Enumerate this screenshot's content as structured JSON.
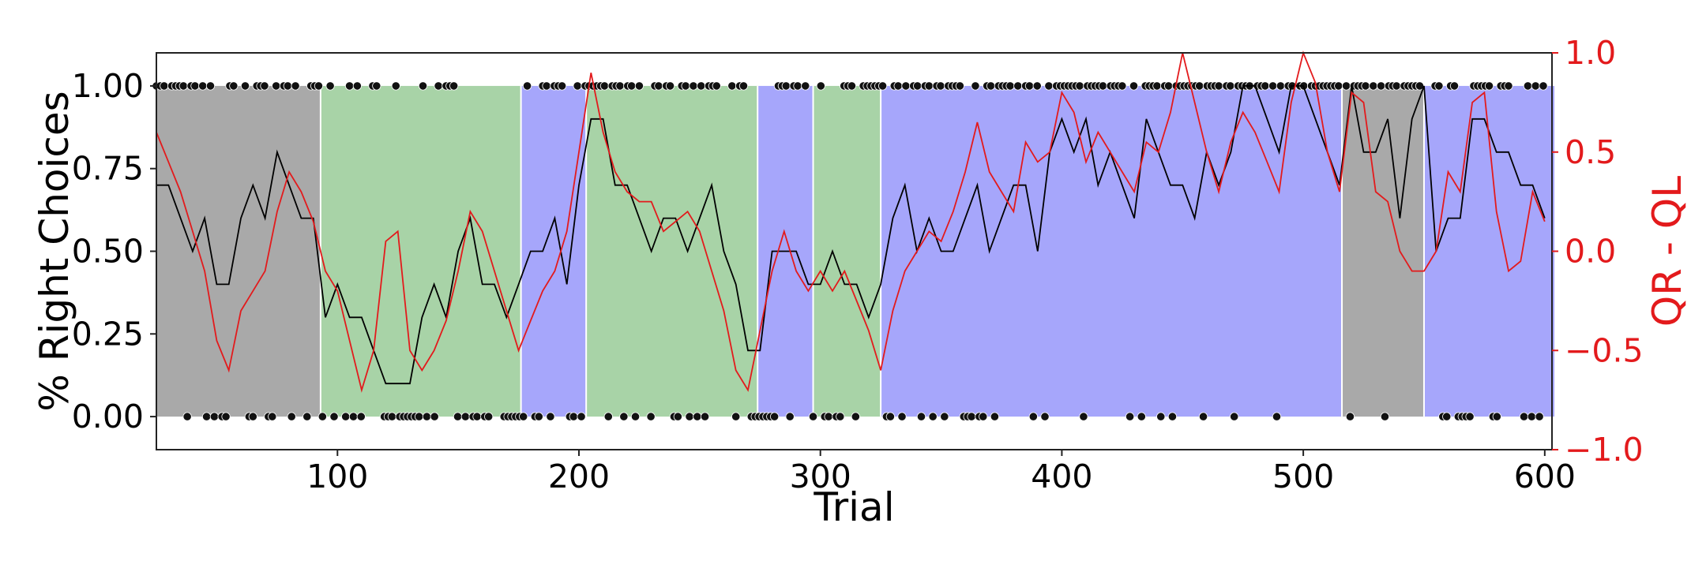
{
  "chart_data": {
    "type": "line",
    "xlabel": "Trial",
    "ylabel_left": "% Right Choices",
    "ylabel_right": "QR - QL",
    "xlim": [
      25,
      603
    ],
    "ylim_left": [
      -0.1,
      1.1
    ],
    "ylim_right": [
      -1.0,
      1.0
    ],
    "xticks": [
      "100",
      "200",
      "300",
      "400",
      "500",
      "600"
    ],
    "yticks_left": [
      "0.00",
      "0.25",
      "0.50",
      "0.75",
      "1.00"
    ],
    "yticks_right": [
      "−1.0",
      "−0.5",
      "0.0",
      "0.5",
      "1.0"
    ],
    "grid": false,
    "colors": {
      "gray_block": "#a9a9a9",
      "green_block": "#a8d3a7",
      "blue_block": "#a6a6fb",
      "choice_line": "#000000",
      "q_line": "#e31a1c",
      "right_axis": "#e31a1c"
    },
    "blocks": [
      {
        "start": 25,
        "end": 92,
        "condition": "gray"
      },
      {
        "start": 93,
        "end": 175,
        "condition": "green"
      },
      {
        "start": 176,
        "end": 202,
        "condition": "blue"
      },
      {
        "start": 203,
        "end": 273,
        "condition": "green"
      },
      {
        "start": 274,
        "end": 296,
        "condition": "blue"
      },
      {
        "start": 297,
        "end": 324,
        "condition": "green"
      },
      {
        "start": 325,
        "end": 515,
        "condition": "blue"
      },
      {
        "start": 516,
        "end": 549,
        "condition": "gray"
      },
      {
        "start": 550,
        "end": 603,
        "condition": "blue"
      }
    ],
    "series": [
      {
        "axis": "left",
        "color": "#000000",
        "x": [
          25,
          30,
          35,
          40,
          45,
          50,
          55,
          60,
          65,
          70,
          75,
          80,
          85,
          90,
          95,
          100,
          105,
          110,
          115,
          120,
          125,
          130,
          135,
          140,
          145,
          150,
          155,
          160,
          165,
          170,
          175,
          180,
          185,
          190,
          195,
          200,
          205,
          210,
          215,
          220,
          225,
          230,
          235,
          240,
          245,
          250,
          255,
          260,
          265,
          270,
          275,
          280,
          285,
          290,
          295,
          300,
          305,
          310,
          315,
          320,
          325,
          330,
          335,
          340,
          345,
          350,
          355,
          360,
          365,
          370,
          375,
          380,
          385,
          390,
          395,
          400,
          405,
          410,
          415,
          420,
          425,
          430,
          435,
          440,
          445,
          450,
          455,
          460,
          465,
          470,
          475,
          480,
          485,
          490,
          495,
          500,
          505,
          510,
          515,
          520,
          525,
          530,
          535,
          540,
          545,
          550,
          555,
          560,
          565,
          570,
          575,
          580,
          585,
          590,
          595,
          600
        ],
        "y": [
          0.7,
          0.7,
          0.6,
          0.5,
          0.6,
          0.4,
          0.4,
          0.6,
          0.7,
          0.6,
          0.8,
          0.7,
          0.6,
          0.6,
          0.3,
          0.4,
          0.3,
          0.3,
          0.2,
          0.1,
          0.1,
          0.1,
          0.3,
          0.4,
          0.3,
          0.5,
          0.6,
          0.4,
          0.4,
          0.3,
          0.4,
          0.5,
          0.5,
          0.6,
          0.4,
          0.7,
          0.9,
          0.9,
          0.7,
          0.7,
          0.6,
          0.5,
          0.6,
          0.6,
          0.5,
          0.6,
          0.7,
          0.5,
          0.4,
          0.2,
          0.2,
          0.5,
          0.5,
          0.5,
          0.4,
          0.4,
          0.5,
          0.4,
          0.4,
          0.3,
          0.4,
          0.6,
          0.7,
          0.5,
          0.6,
          0.5,
          0.5,
          0.6,
          0.7,
          0.5,
          0.6,
          0.7,
          0.7,
          0.5,
          0.8,
          0.9,
          0.8,
          0.9,
          0.7,
          0.8,
          0.7,
          0.6,
          0.9,
          0.8,
          0.7,
          0.7,
          0.6,
          0.8,
          0.7,
          0.8,
          1.0,
          1.0,
          0.9,
          0.8,
          1.0,
          1.0,
          0.9,
          0.8,
          0.7,
          1.0,
          0.8,
          0.8,
          0.9,
          0.6,
          0.9,
          1.0,
          0.5,
          0.6,
          0.6,
          0.9,
          0.9,
          0.8,
          0.8,
          0.7,
          0.7,
          0.6
        ]
      },
      {
        "axis": "right",
        "color": "#e31a1c",
        "x": [
          25,
          30,
          35,
          40,
          45,
          50,
          55,
          60,
          65,
          70,
          75,
          80,
          85,
          90,
          95,
          100,
          105,
          110,
          115,
          120,
          125,
          130,
          135,
          140,
          145,
          150,
          155,
          160,
          165,
          170,
          175,
          180,
          185,
          190,
          195,
          200,
          205,
          210,
          215,
          220,
          225,
          230,
          235,
          240,
          245,
          250,
          255,
          260,
          265,
          270,
          275,
          280,
          285,
          290,
          295,
          300,
          305,
          310,
          315,
          320,
          325,
          330,
          335,
          340,
          345,
          350,
          355,
          360,
          365,
          370,
          375,
          380,
          385,
          390,
          395,
          400,
          405,
          410,
          415,
          420,
          425,
          430,
          435,
          440,
          445,
          450,
          455,
          460,
          465,
          470,
          475,
          480,
          485,
          490,
          495,
          500,
          505,
          510,
          515,
          520,
          525,
          530,
          535,
          540,
          545,
          550,
          555,
          560,
          565,
          570,
          575,
          580,
          585,
          590,
          595,
          600
        ],
        "y": [
          0.6,
          0.45,
          0.3,
          0.1,
          -0.1,
          -0.45,
          -0.6,
          -0.3,
          -0.2,
          -0.1,
          0.2,
          0.4,
          0.3,
          0.15,
          -0.1,
          -0.2,
          -0.45,
          -0.7,
          -0.5,
          0.05,
          0.1,
          -0.5,
          -0.6,
          -0.5,
          -0.35,
          -0.1,
          0.2,
          0.1,
          -0.1,
          -0.3,
          -0.5,
          -0.35,
          -0.2,
          -0.1,
          0.1,
          0.5,
          0.9,
          0.6,
          0.4,
          0.3,
          0.25,
          0.25,
          0.1,
          0.15,
          0.2,
          0.1,
          -0.1,
          -0.3,
          -0.6,
          -0.7,
          -0.4,
          -0.1,
          0.1,
          -0.1,
          -0.2,
          -0.1,
          -0.2,
          -0.1,
          -0.25,
          -0.4,
          -0.6,
          -0.3,
          -0.1,
          0.0,
          0.1,
          0.05,
          0.2,
          0.4,
          0.65,
          0.4,
          0.3,
          0.2,
          0.55,
          0.45,
          0.5,
          0.8,
          0.7,
          0.45,
          0.6,
          0.5,
          0.4,
          0.3,
          0.55,
          0.5,
          0.7,
          1.0,
          0.75,
          0.5,
          0.3,
          0.55,
          0.7,
          0.6,
          0.45,
          0.3,
          0.75,
          1.0,
          0.85,
          0.5,
          0.3,
          0.8,
          0.75,
          0.3,
          0.25,
          0.0,
          -0.1,
          -0.1,
          0.0,
          0.4,
          0.3,
          0.75,
          0.8,
          0.2,
          -0.1,
          -0.05,
          0.3,
          0.15
        ]
      }
    ],
    "choice_markers": {
      "y_values": [
        0.0,
        1.0
      ],
      "marker": "black dots along bottom (0.00) and top (1.00) of panel"
    }
  }
}
